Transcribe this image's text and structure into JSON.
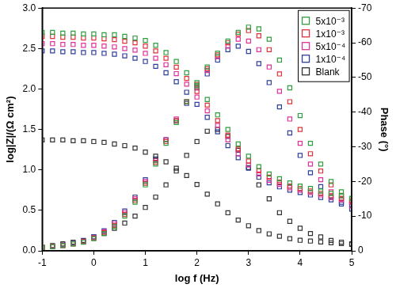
{
  "chart_data": {
    "type": "scatter",
    "x_label": "log f (Hz)",
    "y_label": "log|Z|/(Ω cm²)",
    "y2_label": "Phase (°)",
    "marker": "square",
    "line_style": "none",
    "grid": false,
    "legend": "upper right",
    "xlim": [
      -1,
      5
    ],
    "xticks": [
      -1,
      0,
      1,
      2,
      3,
      4,
      5
    ],
    "ylim": [
      0,
      3
    ],
    "yticks": [
      {
        "value": 0,
        "label": "0.0"
      },
      {
        "value": 0.5,
        "label": "0.5"
      },
      {
        "value": 1,
        "label": "1.0"
      },
      {
        "value": 1.5,
        "label": "1.5"
      },
      {
        "value": 2,
        "label": "2.0"
      },
      {
        "value": 2.5,
        "label": "2.5"
      },
      {
        "value": 3,
        "label": "3.0"
      }
    ],
    "y2lim": [
      0,
      -70
    ],
    "y2ticks": [
      0,
      -10,
      -20,
      -30,
      -40,
      -50,
      -60,
      -70
    ],
    "x": [
      -1,
      -0.8,
      -0.6,
      -0.4,
      -0.2,
      0,
      0.2,
      0.4,
      0.6,
      0.8,
      1,
      1.2,
      1.4,
      1.6,
      1.8,
      2,
      2.2,
      2.4,
      2.6,
      2.8,
      3,
      3.2,
      3.4,
      3.6,
      3.8,
      4,
      4.2,
      4.4,
      4.6,
      4.8,
      5
    ],
    "series": [
      {
        "name": "5x10⁻³",
        "color": "#2f9e3f",
        "values": [
          2.7,
          2.7,
          2.69,
          2.69,
          2.68,
          2.68,
          2.67,
          2.67,
          2.65,
          2.63,
          2.6,
          2.54,
          2.45,
          2.34,
          2.2,
          2.04,
          1.87,
          1.68,
          1.5,
          1.32,
          1.17,
          1.04,
          0.95,
          0.89,
          0.84,
          0.8,
          0.77,
          0.74,
          0.71,
          0.68,
          0.65
        ]
      },
      {
        "name": "1x10⁻³",
        "color": "#e0323a",
        "values": [
          2.65,
          2.65,
          2.64,
          2.64,
          2.63,
          2.63,
          2.62,
          2.61,
          2.59,
          2.57,
          2.53,
          2.47,
          2.38,
          2.27,
          2.13,
          1.97,
          1.8,
          1.61,
          1.43,
          1.26,
          1.11,
          0.99,
          0.91,
          0.85,
          0.8,
          0.77,
          0.74,
          0.71,
          0.68,
          0.65,
          0.62
        ]
      },
      {
        "name": "5x10⁻⁴",
        "color": "#e0329b",
        "values": [
          2.56,
          2.56,
          2.55,
          2.55,
          2.54,
          2.54,
          2.53,
          2.52,
          2.5,
          2.48,
          2.44,
          2.38,
          2.3,
          2.19,
          2.06,
          1.9,
          1.73,
          1.55,
          1.37,
          1.2,
          1.06,
          0.95,
          0.87,
          0.82,
          0.78,
          0.75,
          0.72,
          0.69,
          0.66,
          0.63,
          0.6
        ]
      },
      {
        "name": "1x10⁻⁴",
        "color": "#2e3f9c",
        "values": [
          2.47,
          2.47,
          2.46,
          2.46,
          2.45,
          2.45,
          2.44,
          2.43,
          2.41,
          2.38,
          2.34,
          2.28,
          2.2,
          2.09,
          1.96,
          1.81,
          1.65,
          1.47,
          1.3,
          1.15,
          1.02,
          0.91,
          0.84,
          0.79,
          0.75,
          0.72,
          0.69,
          0.66,
          0.63,
          0.6,
          0.57
        ]
      },
      {
        "name": "Blank",
        "color": "#333333",
        "values": [
          1.37,
          1.37,
          1.37,
          1.36,
          1.36,
          1.35,
          1.34,
          1.32,
          1.3,
          1.27,
          1.22,
          1.17,
          1.1,
          1.02,
          0.93,
          0.82,
          0.7,
          0.58,
          0.47,
          0.38,
          0.31,
          0.25,
          0.21,
          0.18,
          0.15,
          0.13,
          0.12,
          0.11,
          0.1,
          0.09,
          0.08
        ]
      },
      {
        "color": "#2f9e3f",
        "axis": "y2",
        "values": [
          -1,
          -1.2,
          -1.5,
          -2,
          -2.5,
          -3.5,
          -5,
          -7,
          -10,
          -14,
          -19,
          -25,
          -31,
          -37,
          -43,
          -48.5,
          -53,
          -57,
          -60.5,
          -63,
          -64.5,
          -64,
          -61,
          -55,
          -47,
          -39,
          -31,
          -25,
          -20,
          -17,
          -15
        ]
      },
      {
        "color": "#e0323a",
        "axis": "y2",
        "values": [
          -1,
          -1.2,
          -1.5,
          -2,
          -2.6,
          -3.6,
          -5.2,
          -7.3,
          -10.5,
          -14.5,
          -19.5,
          -25.5,
          -31.5,
          -37.5,
          -43,
          -48,
          -52.5,
          -56.5,
          -60,
          -62.5,
          -63.5,
          -62,
          -58,
          -51,
          -43,
          -35,
          -28,
          -23,
          -19,
          -16,
          -14
        ]
      },
      {
        "color": "#e0329b",
        "axis": "y2",
        "values": [
          -1,
          -1.3,
          -1.6,
          -2.1,
          -2.7,
          -3.8,
          -5.5,
          -7.8,
          -11,
          -15,
          -20,
          -26,
          -32,
          -38,
          -43,
          -47.5,
          -52,
          -56,
          -59,
          -61,
          -60.5,
          -58,
          -53,
          -46,
          -38,
          -31,
          -25,
          -20.5,
          -17,
          -15,
          -13
        ]
      },
      {
        "color": "#2e3f9c",
        "axis": "y2",
        "values": [
          -1,
          -1.3,
          -1.7,
          -2.2,
          -2.8,
          -4,
          -5.8,
          -8.2,
          -11.5,
          -15.5,
          -20.5,
          -26.5,
          -32,
          -37.5,
          -42.5,
          -47,
          -51,
          -55,
          -58,
          -59,
          -57.5,
          -54,
          -48.5,
          -41.5,
          -34,
          -27.5,
          -22.5,
          -18.5,
          -15.5,
          -13.5,
          -12
        ]
      },
      {
        "color": "#333333",
        "axis": "y2",
        "values": [
          -1,
          -1.5,
          -2,
          -2.5,
          -3,
          -4,
          -5,
          -6.5,
          -8,
          -10,
          -12.5,
          -15.5,
          -19,
          -23,
          -27.5,
          -31.5,
          -34.5,
          -35,
          -33,
          -29,
          -24,
          -19,
          -15,
          -11,
          -8.5,
          -6.5,
          -5,
          -4,
          -3,
          -2.5,
          -2
        ]
      }
    ]
  }
}
